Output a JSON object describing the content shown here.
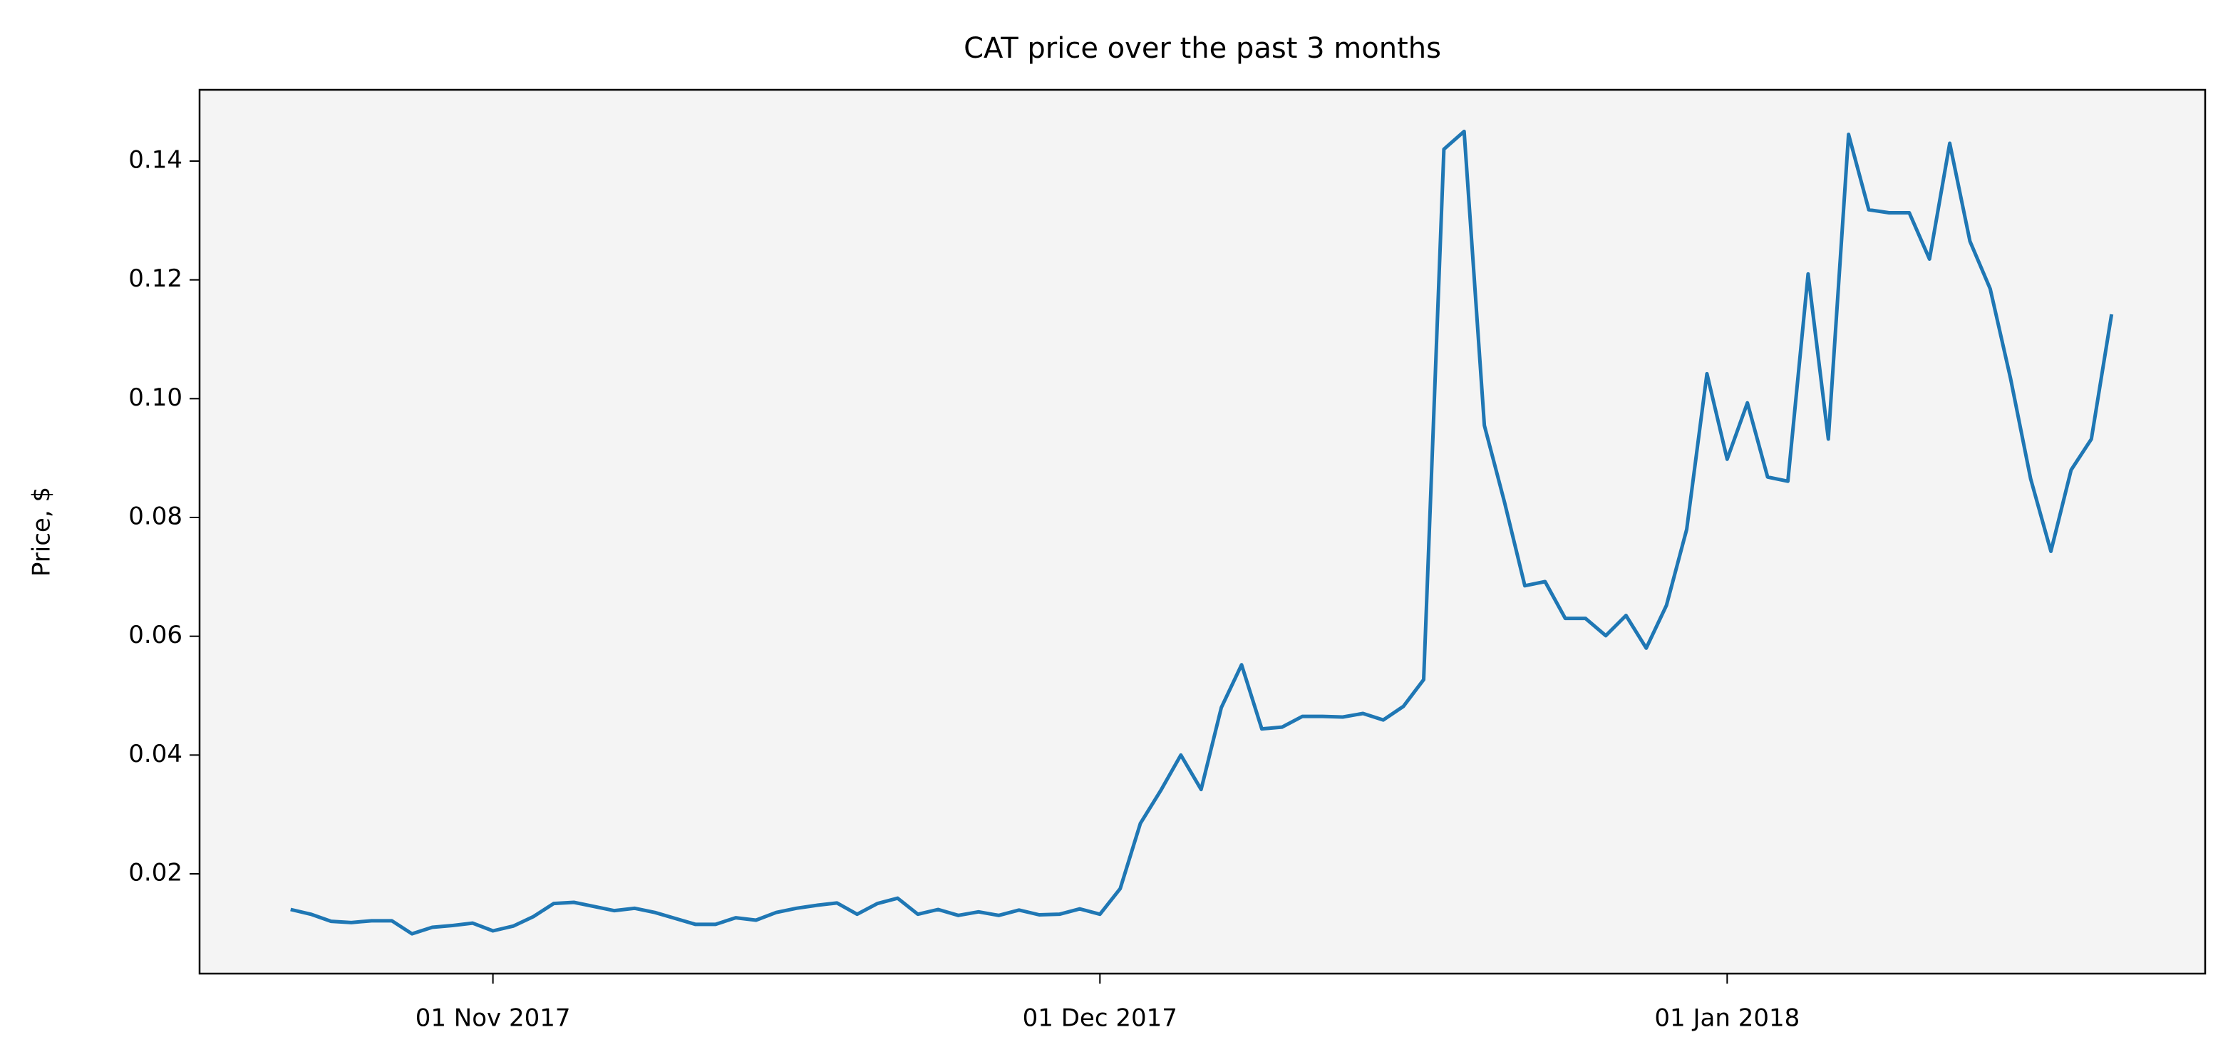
{
  "chart_data": {
    "type": "line",
    "title": "CAT price over the past 3 months",
    "y_label": "Price, $",
    "color": "#1f77b4",
    "x": [
      "2017-10-22",
      "2017-10-23",
      "2017-10-24",
      "2017-10-25",
      "2017-10-26",
      "2017-10-27",
      "2017-10-28",
      "2017-10-29",
      "2017-10-30",
      "2017-10-31",
      "2017-11-01",
      "2017-11-02",
      "2017-11-03",
      "2017-11-04",
      "2017-11-05",
      "2017-11-06",
      "2017-11-07",
      "2017-11-08",
      "2017-11-09",
      "2017-11-10",
      "2017-11-11",
      "2017-11-12",
      "2017-11-13",
      "2017-11-14",
      "2017-11-15",
      "2017-11-16",
      "2017-11-17",
      "2017-11-18",
      "2017-11-19",
      "2017-11-20",
      "2017-11-21",
      "2017-11-22",
      "2017-11-23",
      "2017-11-24",
      "2017-11-25",
      "2017-11-26",
      "2017-11-27",
      "2017-11-28",
      "2017-11-29",
      "2017-11-30",
      "2017-12-01",
      "2017-12-02",
      "2017-12-03",
      "2017-12-04",
      "2017-12-05",
      "2017-12-06",
      "2017-12-07",
      "2017-12-08",
      "2017-12-09",
      "2017-12-10",
      "2017-12-11",
      "2017-12-12",
      "2017-12-13",
      "2017-12-14",
      "2017-12-15",
      "2017-12-16",
      "2017-12-17",
      "2017-12-18",
      "2017-12-19",
      "2017-12-20",
      "2017-12-21",
      "2017-12-22",
      "2017-12-23",
      "2017-12-24",
      "2017-12-25",
      "2017-12-26",
      "2017-12-27",
      "2017-12-28",
      "2017-12-29",
      "2017-12-30",
      "2017-12-31",
      "2018-01-01",
      "2018-01-02",
      "2018-01-03",
      "2018-01-04",
      "2018-01-05",
      "2018-01-06",
      "2018-01-07",
      "2018-01-08",
      "2018-01-09",
      "2018-01-10",
      "2018-01-11",
      "2018-01-12",
      "2018-01-13",
      "2018-01-14",
      "2018-01-15",
      "2018-01-16",
      "2018-01-17",
      "2018-01-18",
      "2018-01-19",
      "2018-01-20"
    ],
    "values": [
      0.014,
      0.0132,
      0.012,
      0.0118,
      0.0121,
      0.0121,
      0.0099,
      0.011,
      0.0113,
      0.0117,
      0.0104,
      0.0112,
      0.0128,
      0.015,
      0.0152,
      0.0145,
      0.0138,
      0.0142,
      0.0135,
      0.0125,
      0.0115,
      0.0115,
      0.0126,
      0.0122,
      0.0135,
      0.0142,
      0.0147,
      0.0151,
      0.0132,
      0.015,
      0.0159,
      0.0132,
      0.014,
      0.013,
      0.0136,
      0.013,
      0.0139,
      0.0131,
      0.0132,
      0.0141,
      0.0132,
      0.0175,
      0.0285,
      0.034,
      0.04,
      0.0342,
      0.048,
      0.0552,
      0.0444,
      0.0447,
      0.0465,
      0.0465,
      0.0464,
      0.047,
      0.0459,
      0.0482,
      0.0527,
      0.142,
      0.145,
      0.0955,
      0.0825,
      0.0685,
      0.0692,
      0.063,
      0.063,
      0.0601,
      0.0635,
      0.058,
      0.0652,
      0.078,
      0.1042,
      0.0898,
      0.0993,
      0.0868,
      0.0861,
      0.121,
      0.0932,
      0.1445,
      0.1318,
      0.1313,
      0.1313,
      0.1235,
      0.143,
      0.1265,
      0.1185,
      0.1035,
      0.0865,
      0.0743,
      0.088,
      0.0932,
      0.1142
    ],
    "xlim": [
      "2017-10-17T12:00Z",
      "2018-01-24T15:00Z"
    ],
    "xticks": [
      {
        "value": "2017-11-01",
        "label": "01 Nov 2017"
      },
      {
        "value": "2017-12-01",
        "label": "01 Dec 2017"
      },
      {
        "value": "2018-01-01",
        "label": "01 Jan 2018"
      }
    ],
    "ylim": [
      0.0032,
      0.152
    ],
    "yticks": [
      0.02,
      0.04,
      0.06,
      0.08,
      {
        "value": 0.1,
        "label": "0.10"
      },
      0.12,
      0.14
    ],
    "grid": false
  }
}
